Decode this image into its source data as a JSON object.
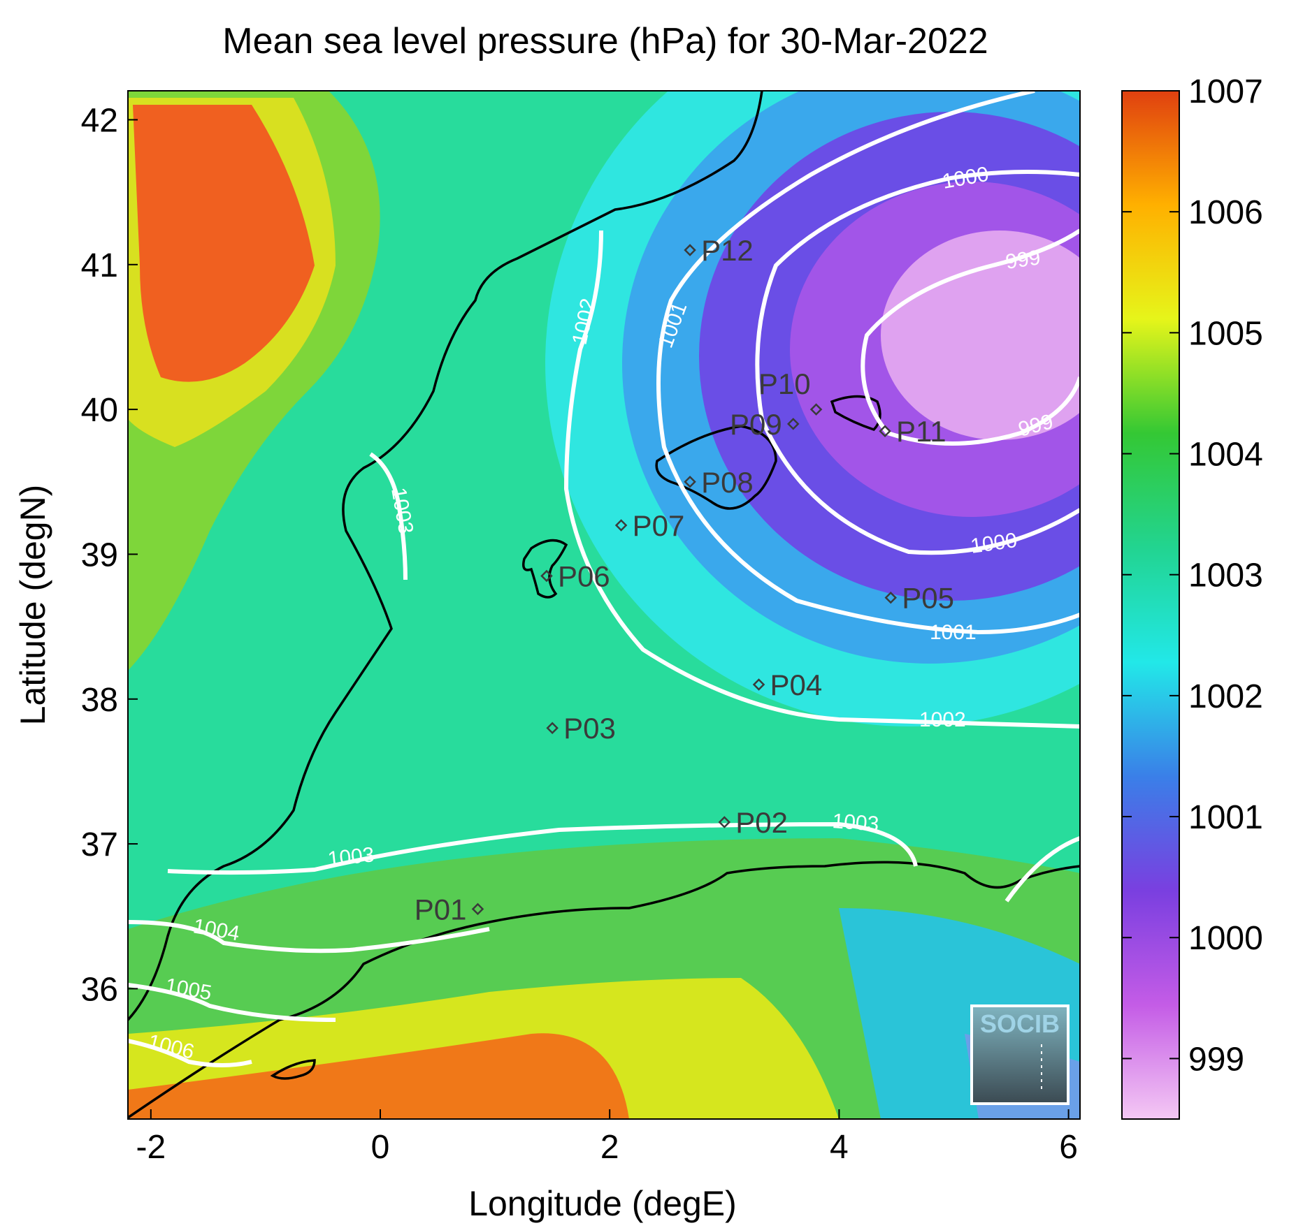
{
  "title": "Mean sea level pressure (hPa) for 30-Mar-2022",
  "xlabel": "Longitude (degE)",
  "ylabel": "Latitude (degN)",
  "xlim": [
    -2.2,
    6.1
  ],
  "ylim": [
    35.1,
    42.2
  ],
  "xticks": [
    -2,
    0,
    2,
    4,
    6
  ],
  "yticks": [
    36,
    37,
    38,
    39,
    40,
    41,
    42
  ],
  "colorbar": {
    "min": 998.5,
    "max": 1007,
    "ticks": [
      999,
      1000,
      1001,
      1002,
      1003,
      1004,
      1005,
      1006,
      1007
    ],
    "stops": [
      "#f4c8f4",
      "#c45ce6",
      "#7a3fe0",
      "#3a7fe8",
      "#22e8e8",
      "#22d490",
      "#34c834",
      "#e6f51a",
      "#ffb000",
      "#e04010"
    ]
  },
  "stations": [
    {
      "name": "P01",
      "lon": 0.85,
      "lat": 36.55
    },
    {
      "name": "P02",
      "lon": 3.0,
      "lat": 37.15
    },
    {
      "name": "P03",
      "lon": 1.5,
      "lat": 37.8
    },
    {
      "name": "P04",
      "lon": 3.3,
      "lat": 38.1
    },
    {
      "name": "P05",
      "lon": 4.45,
      "lat": 38.7
    },
    {
      "name": "P06",
      "lon": 1.45,
      "lat": 38.85
    },
    {
      "name": "P07",
      "lon": 2.1,
      "lat": 39.2
    },
    {
      "name": "P08",
      "lon": 2.7,
      "lat": 39.5
    },
    {
      "name": "P09",
      "lon": 3.6,
      "lat": 39.9
    },
    {
      "name": "P10",
      "lon": 3.8,
      "lat": 40.0
    },
    {
      "name": "P11",
      "lon": 4.4,
      "lat": 39.85
    },
    {
      "name": "P12",
      "lon": 2.7,
      "lat": 41.1
    }
  ],
  "contours": [
    {
      "label": "999",
      "value": 999
    },
    {
      "label": "1000",
      "value": 1000
    },
    {
      "label": "1001",
      "value": 1001
    },
    {
      "label": "1002",
      "value": 1002
    },
    {
      "label": "1003",
      "value": 1003
    },
    {
      "label": "1004",
      "value": 1004
    },
    {
      "label": "1005",
      "value": 1005
    },
    {
      "label": "1006",
      "value": 1006
    }
  ],
  "logo": {
    "text": "SOCIB"
  }
}
